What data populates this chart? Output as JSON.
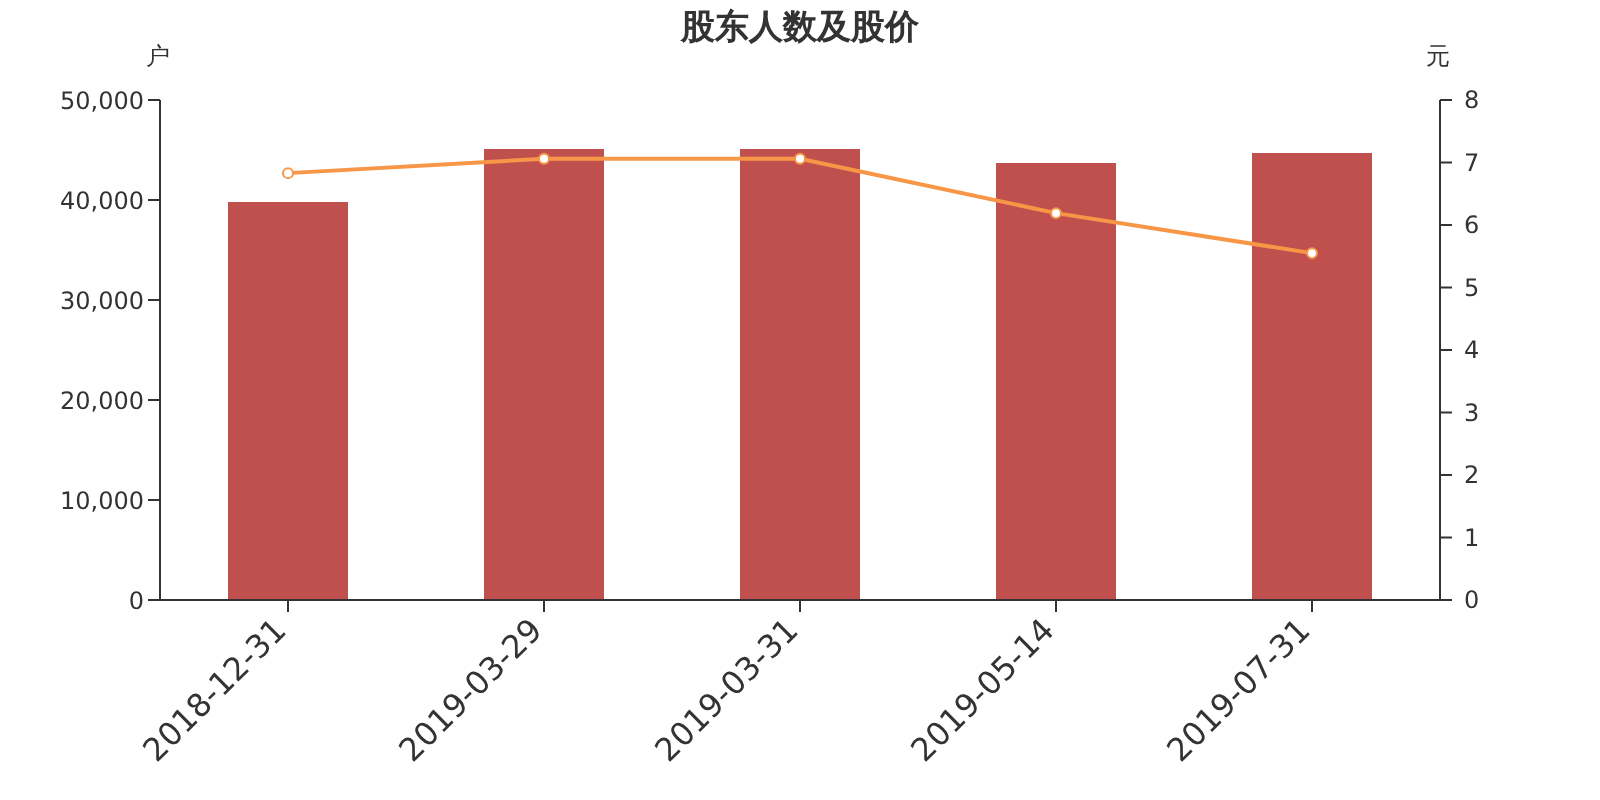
{
  "chart_data": {
    "type": "bar",
    "title": "股东人数及股价",
    "ylabel": "户",
    "y2label": "元",
    "categories": [
      "2018-12-31",
      "2019-03-29",
      "2019-03-31",
      "2019-05-14",
      "2019-07-31"
    ],
    "series": [
      {
        "color": "#c0504d",
        "values": [
          39800,
          45100,
          45100,
          43700,
          44700
        ]
      },
      {
        "type": "line",
        "axis": "y2",
        "color": "#f79646",
        "marker": "circle",
        "values": [
          6.83,
          7.06,
          7.06,
          6.19,
          5.55
        ]
      }
    ],
    "ylim": [
      0,
      50000
    ],
    "yticks": [
      {
        "value": 0,
        "label": "0"
      },
      {
        "value": 10000,
        "label": "10,000"
      },
      {
        "value": 20000,
        "label": "20,000"
      },
      {
        "value": 30000,
        "label": "30,000"
      },
      {
        "value": 40000,
        "label": "40,000"
      },
      {
        "value": 50000,
        "label": "50,000"
      }
    ],
    "y2lim": [
      0,
      8
    ],
    "y2ticks": [
      0,
      1,
      2,
      3,
      4,
      5,
      6,
      7,
      8
    ],
    "grid": false,
    "legend": false
  }
}
